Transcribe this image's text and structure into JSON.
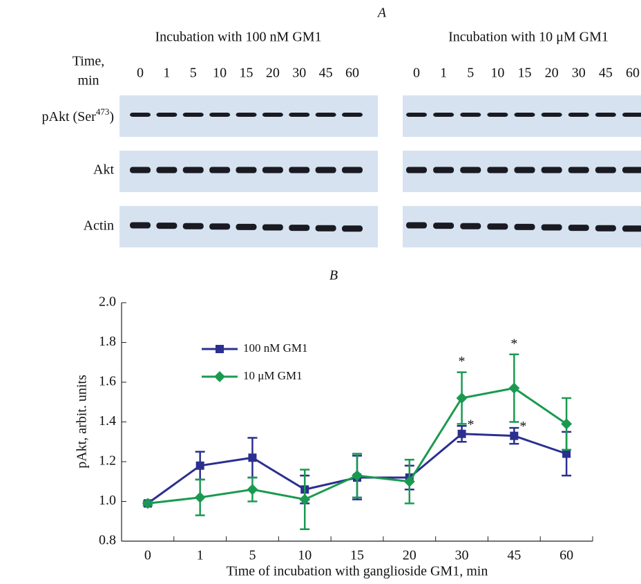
{
  "panel_a": {
    "label": "A",
    "time_label": [
      "Time,",
      "min"
    ],
    "groups": [
      {
        "title": "Incubation with 100 nM GM1",
        "lanes": [
          "0",
          "1",
          "5",
          "10",
          "15",
          "20",
          "30",
          "45",
          "60"
        ]
      },
      {
        "title": "Incubation with 10 μM GM1",
        "lanes": [
          "0",
          "1",
          "5",
          "10",
          "15",
          "20",
          "30",
          "45",
          "60"
        ]
      }
    ],
    "rows": [
      {
        "text": "pAkt (Ser",
        "sup": "473",
        "tail": ")"
      },
      {
        "text": "Akt"
      },
      {
        "text": "Actin"
      }
    ]
  },
  "chart_data": {
    "type": "line",
    "panel_label": "B",
    "x_label": "Time of incubation with ganglioside GM1, min",
    "y_label": "pAkt, arbit. units",
    "categories": [
      "0",
      "1",
      "5",
      "10",
      "15",
      "20",
      "30",
      "45",
      "60"
    ],
    "ylim": [
      0.8,
      2.0
    ],
    "yticks": [
      {
        "value": 0.8,
        "label": "0.8"
      },
      {
        "value": 1.0,
        "label": "1.0"
      },
      {
        "value": 1.2,
        "label": "1.2"
      },
      {
        "value": 1.4,
        "label": "1.4"
      },
      {
        "value": 1.6,
        "label": "1.6"
      },
      {
        "value": 1.8,
        "label": "1.8"
      },
      {
        "value": 2.0,
        "label": "2.0"
      }
    ],
    "series": [
      {
        "name": "100 nM GM1",
        "color": "#2b2f8f",
        "marker": "square",
        "values": [
          0.99,
          1.18,
          1.22,
          1.06,
          1.12,
          1.12,
          1.34,
          1.33,
          1.24
        ],
        "errors": [
          0.01,
          0.07,
          0.1,
          0.07,
          0.11,
          0.06,
          0.04,
          0.04,
          0.11
        ],
        "significance": [
          null,
          null,
          null,
          null,
          null,
          null,
          "*",
          "*",
          null
        ]
      },
      {
        "name": "10 μM GM1",
        "color": "#1a9a50",
        "marker": "diamond",
        "values": [
          0.99,
          1.02,
          1.06,
          1.01,
          1.13,
          1.1,
          1.52,
          1.57,
          1.39
        ],
        "errors": [
          0.01,
          0.09,
          0.06,
          0.15,
          0.11,
          0.11,
          0.13,
          0.17,
          0.13
        ],
        "significance": [
          null,
          null,
          null,
          null,
          null,
          null,
          "*",
          "*",
          null
        ]
      }
    ]
  }
}
